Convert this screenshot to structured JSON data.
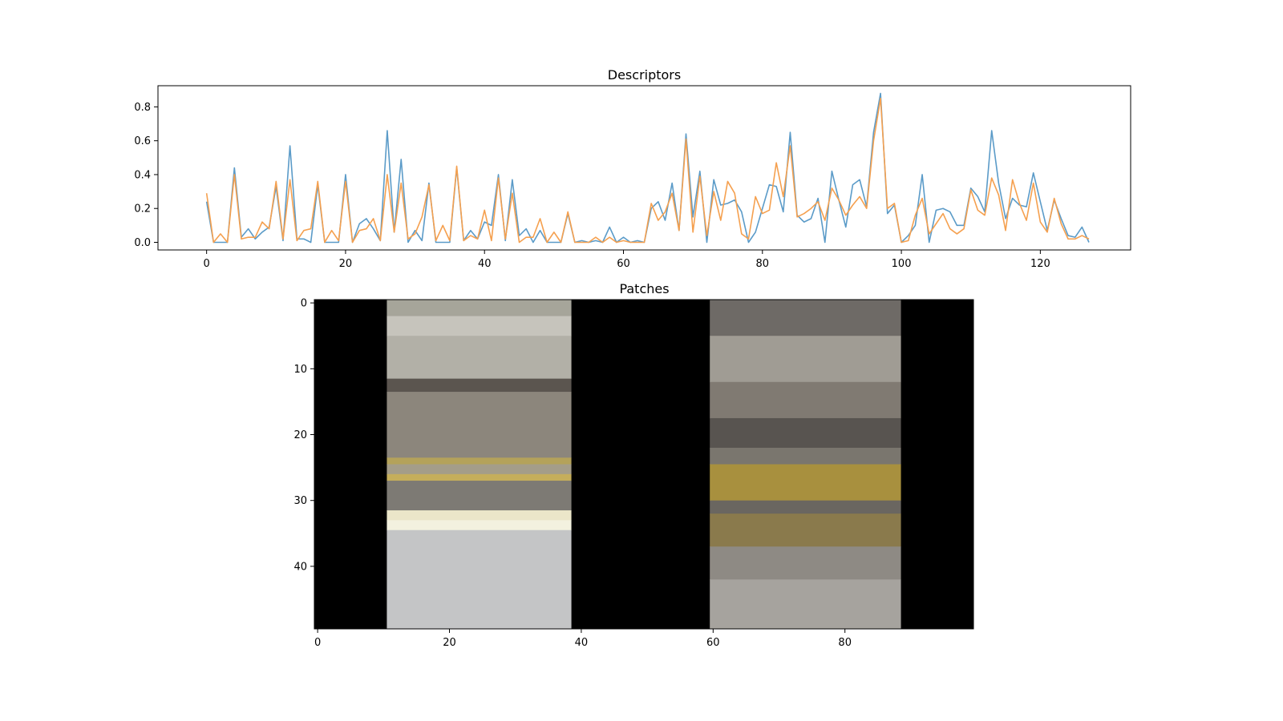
{
  "chart_data": [
    {
      "type": "line",
      "title": "Descriptors",
      "xlabel": "",
      "ylabel": "",
      "xlim": [
        -7,
        133
      ],
      "ylim": [
        -0.045,
        0.925
      ],
      "xticks": [
        0,
        20,
        40,
        60,
        80,
        100,
        120
      ],
      "yticks": [
        0.0,
        0.2,
        0.4,
        0.6,
        0.8
      ],
      "grid": false,
      "series": [
        {
          "color": "#5b9bc8",
          "values": [
            0.24,
            0,
            0,
            0,
            0.44,
            0.03,
            0.08,
            0.02,
            0.06,
            0.09,
            0.33,
            0.01,
            0.57,
            0.02,
            0.02,
            0,
            0.34,
            0,
            0,
            0,
            0.4,
            0,
            0.11,
            0.14,
            0.08,
            0.01,
            0.66,
            0.06,
            0.49,
            0,
            0.07,
            0.01,
            0.35,
            0,
            0,
            0,
            0.44,
            0.01,
            0.07,
            0.02,
            0.12,
            0.1,
            0.4,
            0.01,
            0.37,
            0.04,
            0.08,
            0,
            0.07,
            0,
            0,
            0,
            0.17,
            0,
            0.01,
            0,
            0.01,
            0,
            0.09,
            0,
            0.03,
            0,
            0.01,
            0,
            0.2,
            0.24,
            0.13,
            0.35,
            0.07,
            0.64,
            0.15,
            0.42,
            0,
            0.37,
            0.22,
            0.23,
            0.25,
            0.18,
            0,
            0.06,
            0.2,
            0.34,
            0.33,
            0.18,
            0.65,
            0.16,
            0.12,
            0.14,
            0.26,
            0,
            0.42,
            0.25,
            0.09,
            0.34,
            0.37,
            0.21,
            0.65,
            0.88,
            0.17,
            0.22,
            0,
            0.04,
            0.1,
            0.4,
            0,
            0.19,
            0.2,
            0.18,
            0.1,
            0.1,
            0.32,
            0.27,
            0.18,
            0.66,
            0.35,
            0.14,
            0.26,
            0.22,
            0.21,
            0.41,
            0.24,
            0.07,
            0.25,
            0.14,
            0.04,
            0.03,
            0.09,
            0
          ]
        },
        {
          "color": "#f5a04f",
          "values": [
            0.29,
            0,
            0.05,
            0,
            0.4,
            0.02,
            0.03,
            0.03,
            0.12,
            0.08,
            0.36,
            0.02,
            0.37,
            0.01,
            0.07,
            0.08,
            0.36,
            0,
            0.07,
            0.01,
            0.36,
            0,
            0.07,
            0.08,
            0.14,
            0.01,
            0.4,
            0.06,
            0.35,
            0.02,
            0.05,
            0.15,
            0.34,
            0.01,
            0.1,
            0.01,
            0.45,
            0.01,
            0.04,
            0.02,
            0.19,
            0.01,
            0.38,
            0.02,
            0.29,
            0,
            0.03,
            0.03,
            0.14,
            0,
            0.06,
            0,
            0.18,
            0,
            0,
            0,
            0.03,
            0,
            0.03,
            0,
            0.01,
            0,
            0,
            0,
            0.23,
            0.13,
            0.18,
            0.29,
            0.07,
            0.61,
            0.06,
            0.39,
            0.04,
            0.3,
            0.13,
            0.36,
            0.29,
            0.05,
            0.02,
            0.27,
            0.17,
            0.19,
            0.47,
            0.27,
            0.57,
            0.15,
            0.17,
            0.2,
            0.24,
            0.13,
            0.32,
            0.25,
            0.16,
            0.22,
            0.27,
            0.2,
            0.6,
            0.85,
            0.2,
            0.23,
            0,
            0.01,
            0.16,
            0.26,
            0.05,
            0.11,
            0.17,
            0.08,
            0.05,
            0.08,
            0.31,
            0.19,
            0.16,
            0.38,
            0.28,
            0.07,
            0.37,
            0.23,
            0.13,
            0.35,
            0.12,
            0.06,
            0.26,
            0.11,
            0.02,
            0.02,
            0.04,
            0.02
          ]
        }
      ]
    },
    {
      "type": "heatmap",
      "title": "Patches",
      "xticks": [
        0,
        20,
        40,
        60,
        80
      ],
      "yticks": [
        0,
        10,
        20,
        30,
        40
      ],
      "xlim": [
        -0.5,
        99.5
      ],
      "ylim": [
        49.5,
        -0.5
      ],
      "patches": [
        {
          "x_range": [
            10.5,
            38.5
          ],
          "bands": [
            {
              "y": [
                -0.5,
                2
              ],
              "color": "#a6a59a"
            },
            {
              "y": [
                2,
                5
              ],
              "color": "#c6c4bc"
            },
            {
              "y": [
                5,
                11.5
              ],
              "color": "#b2b0a7"
            },
            {
              "y": [
                11.5,
                13.5
              ],
              "color": "#5b554f"
            },
            {
              "y": [
                13.5,
                23.5
              ],
              "color": "#8c867c"
            },
            {
              "y": [
                23.5,
                24.5
              ],
              "color": "#b4a25a"
            },
            {
              "y": [
                24.5,
                26
              ],
              "color": "#a49d89"
            },
            {
              "y": [
                26,
                27
              ],
              "color": "#c5ae5b"
            },
            {
              "y": [
                27,
                31.5
              ],
              "color": "#7d7a74"
            },
            {
              "y": [
                31.5,
                33
              ],
              "color": "#ebe6c9"
            },
            {
              "y": [
                33,
                34.5
              ],
              "color": "#f3f1df"
            },
            {
              "y": [
                34.5,
                49.5
              ],
              "color": "#c4c5c6"
            }
          ]
        },
        {
          "x_range": [
            59.5,
            88.5
          ],
          "bands": [
            {
              "y": [
                -0.5,
                5
              ],
              "color": "#6e6a66"
            },
            {
              "y": [
                5,
                12
              ],
              "color": "#a09c94"
            },
            {
              "y": [
                12,
                17.5
              ],
              "color": "#807a72"
            },
            {
              "y": [
                17.5,
                22
              ],
              "color": "#585450"
            },
            {
              "y": [
                22,
                24.5
              ],
              "color": "#7a766e"
            },
            {
              "y": [
                24.5,
                30
              ],
              "color": "#a8903e"
            },
            {
              "y": [
                30,
                32
              ],
              "color": "#6a6660"
            },
            {
              "y": [
                32,
                37
              ],
              "color": "#8a7a4c"
            },
            {
              "y": [
                37,
                42
              ],
              "color": "#8e8a84"
            },
            {
              "y": [
                42,
                49.5
              ],
              "color": "#a6a39e"
            }
          ]
        }
      ]
    }
  ]
}
